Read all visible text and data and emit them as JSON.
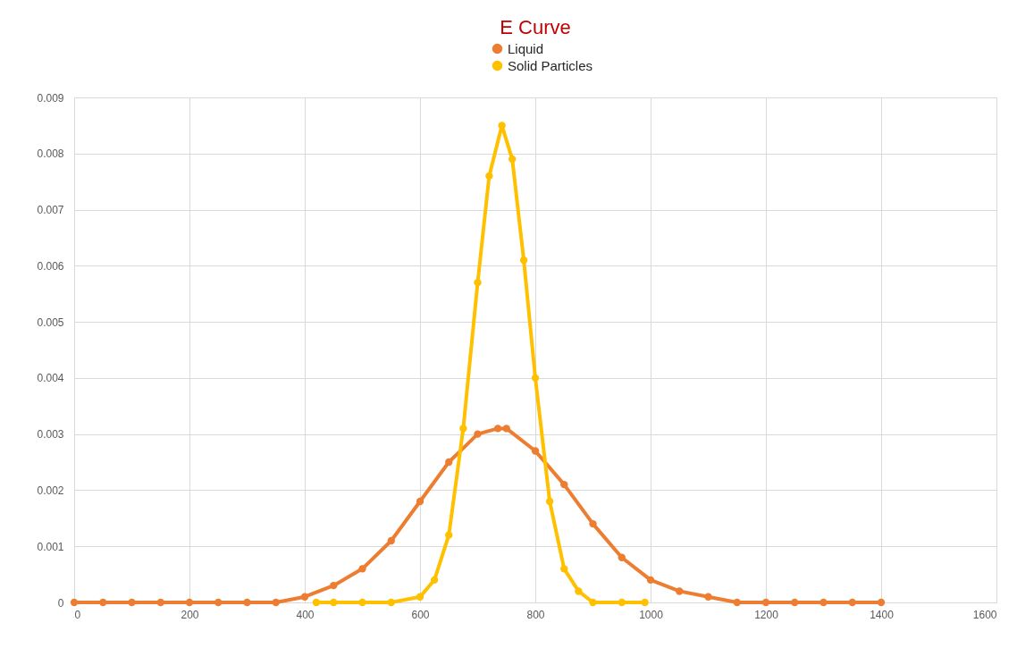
{
  "chart_data": {
    "type": "line",
    "title": "E Curve",
    "legend": "top",
    "grid": true,
    "marker": "circle",
    "line_style": "solid",
    "xlim": [
      0,
      1600
    ],
    "xticks": [
      0,
      200,
      400,
      600,
      800,
      1000,
      1200,
      1400,
      1600
    ],
    "ylim": [
      0,
      0.009
    ],
    "yticks": [
      0,
      0.001,
      0.002,
      0.003,
      0.004,
      0.005,
      0.006,
      0.007,
      0.008,
      0.009
    ],
    "series": [
      {
        "name": "Liquid",
        "color": "#ed7d31",
        "x": [
          0,
          50,
          100,
          150,
          200,
          250,
          300,
          350,
          400,
          450,
          500,
          550,
          600,
          650,
          700,
          735,
          750,
          800,
          850,
          900,
          950,
          1000,
          1050,
          1100,
          1150,
          1200,
          1250,
          1300,
          1350,
          1400
        ],
        "values": [
          0,
          0,
          0,
          0,
          0,
          0,
          0,
          0,
          0.0001,
          0.0003,
          0.0006,
          0.0011,
          0.0018,
          0.0025,
          0.003,
          0.0031,
          0.0031,
          0.0027,
          0.0021,
          0.0014,
          0.0008,
          0.0004,
          0.0002,
          0.0001,
          0,
          0,
          0,
          0,
          0,
          0
        ]
      },
      {
        "name": "Solid Particles",
        "color": "#ffc000",
        "x": [
          420,
          450,
          500,
          550,
          600,
          625,
          650,
          675,
          700,
          720,
          742,
          760,
          780,
          800,
          825,
          850,
          875,
          900,
          950,
          990
        ],
        "values": [
          0,
          0,
          0,
          0,
          0.0001,
          0.0004,
          0.0012,
          0.0031,
          0.0057,
          0.0076,
          0.0085,
          0.0079,
          0.0061,
          0.004,
          0.0018,
          0.0006,
          0.0002,
          0,
          0,
          0
        ]
      }
    ]
  }
}
